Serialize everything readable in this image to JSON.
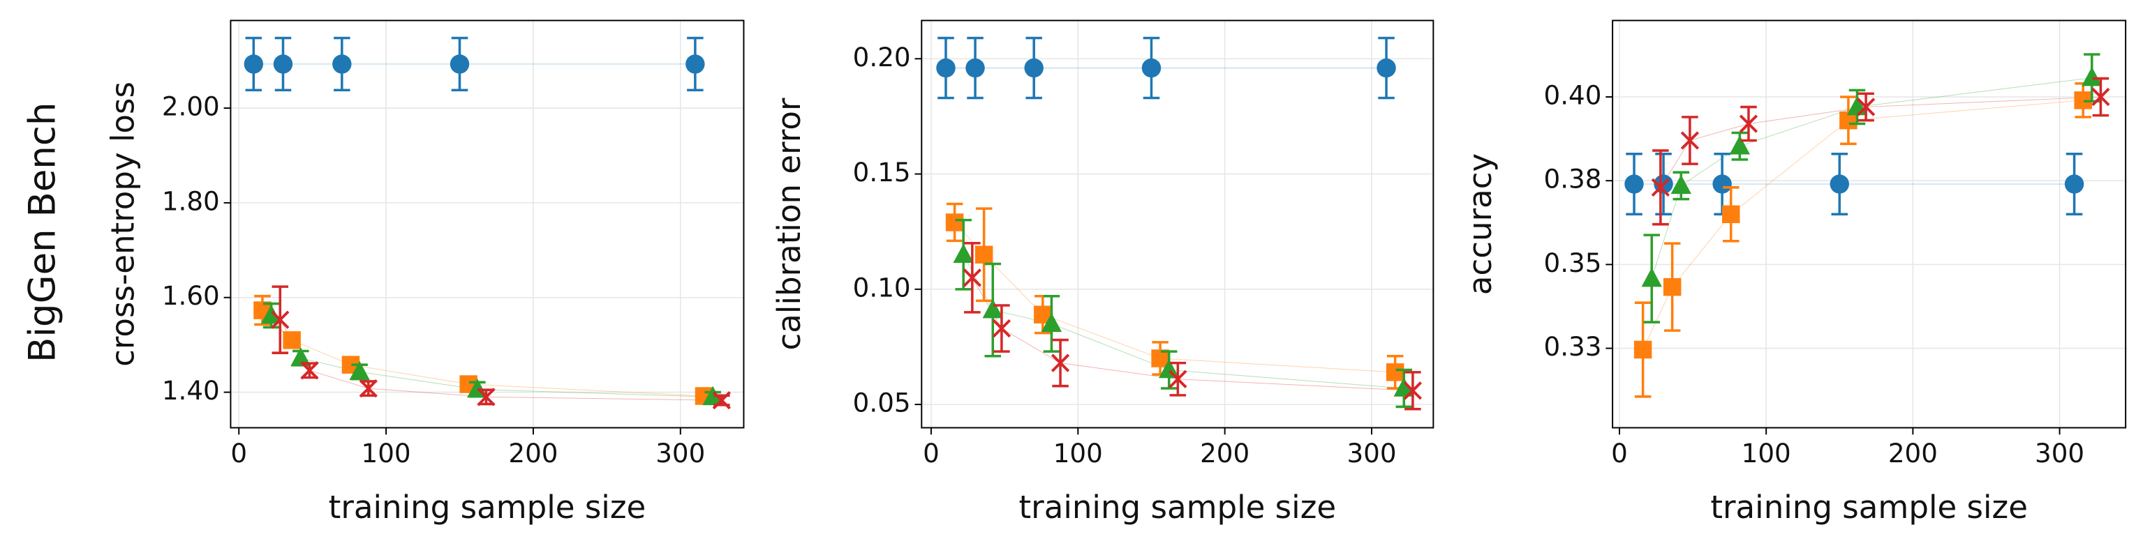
{
  "row_title": "BigGen Bench",
  "chart_data": [
    {
      "type": "scatter",
      "ylabel": "cross-entropy loss",
      "xlabel": "training sample size",
      "xlim": [
        -5.6,
        343
      ],
      "ylim": [
        1.325,
        2.185
      ],
      "xticks": [
        0,
        100,
        200,
        300
      ],
      "yticks": [
        {
          "value": 1.4,
          "label": "1.40"
        },
        {
          "value": 1.6,
          "label": "1.60"
        },
        {
          "value": 1.8,
          "label": "1.80"
        },
        {
          "value": 2.0,
          "label": "2.00"
        }
      ],
      "grid": true,
      "series": [
        {
          "color": "#1f77b4",
          "marker": "circle",
          "x": [
            10,
            30,
            70,
            150,
            310
          ],
          "values": [
            2.093,
            2.093,
            2.093,
            2.093,
            2.093
          ],
          "errors": [
            0.055,
            0.055,
            0.055,
            0.055,
            0.055
          ]
        },
        {
          "color": "#ff7f0e",
          "marker": "square",
          "x": [
            16,
            36,
            76,
            156,
            316
          ],
          "values": [
            1.573,
            1.51,
            1.458,
            1.417,
            1.392
          ],
          "errors": [
            0.03,
            0.015,
            0.01,
            0.01,
            0.008
          ]
        },
        {
          "color": "#2ca02c",
          "marker": "triangle",
          "x": [
            22,
            42,
            82,
            162,
            322
          ],
          "values": [
            1.562,
            1.472,
            1.443,
            1.406,
            1.39
          ],
          "errors": [
            0.025,
            0.015,
            0.015,
            0.015,
            0.01
          ]
        },
        {
          "color": "#d62728",
          "marker": "x",
          "x": [
            28,
            48,
            88,
            168,
            328
          ],
          "values": [
            1.553,
            1.446,
            1.408,
            1.39,
            1.383
          ],
          "errors": [
            0.07,
            0.015,
            0.015,
            0.015,
            0.01
          ]
        }
      ]
    },
    {
      "type": "scatter",
      "ylabel": "calibration error",
      "xlabel": "training sample size",
      "xlim": [
        -6.5,
        342
      ],
      "ylim": [
        0.0399,
        0.2166
      ],
      "xticks": [
        0,
        100,
        200,
        300
      ],
      "yticks": [
        0.05,
        {
          "value": 0.1,
          "label": "0.10"
        },
        0.15,
        {
          "value": 0.2,
          "label": "0.20"
        }
      ],
      "grid": true,
      "series": [
        {
          "color": "#1f77b4",
          "marker": "circle",
          "x": [
            10,
            30,
            70,
            150,
            310
          ],
          "values": [
            0.196,
            0.196,
            0.196,
            0.196,
            0.196
          ],
          "errors": [
            0.013,
            0.013,
            0.013,
            0.013,
            0.013
          ]
        },
        {
          "color": "#ff7f0e",
          "marker": "square",
          "x": [
            16,
            36,
            76,
            156,
            316
          ],
          "values": [
            0.129,
            0.115,
            0.089,
            0.07,
            0.064
          ],
          "errors": [
            0.008,
            0.02,
            0.008,
            0.007,
            0.007
          ]
        },
        {
          "color": "#2ca02c",
          "marker": "triangle",
          "x": [
            22,
            42,
            82,
            162,
            322
          ],
          "values": [
            0.115,
            0.091,
            0.085,
            0.065,
            0.057
          ],
          "errors": [
            0.015,
            0.02,
            0.012,
            0.008,
            0.008
          ]
        },
        {
          "color": "#d62728",
          "marker": "x",
          "x": [
            28,
            48,
            88,
            168,
            328
          ],
          "values": [
            0.105,
            0.083,
            0.068,
            0.061,
            0.056
          ],
          "errors": [
            0.015,
            0.01,
            0.01,
            0.007,
            0.008
          ]
        }
      ]
    },
    {
      "type": "scatter",
      "ylabel": "accuracy",
      "xlabel": "training sample size",
      "xlim": [
        -4.7,
        345
      ],
      "ylim": [
        0.3013,
        0.4228
      ],
      "xticks": [
        0,
        100,
        200,
        300
      ],
      "yticks": [
        {
          "value": 0.325,
          "label": "0.33"
        },
        0.35,
        {
          "value": 0.375,
          "label": "0.38"
        },
        {
          "value": 0.4,
          "label": "0.40"
        }
      ],
      "grid": true,
      "series": [
        {
          "color": "#1f77b4",
          "marker": "circle",
          "x": [
            10,
            30,
            70,
            150,
            310
          ],
          "values": [
            0.374,
            0.374,
            0.374,
            0.374,
            0.374
          ],
          "errors": [
            0.009,
            0.009,
            0.009,
            0.009,
            0.009
          ]
        },
        {
          "color": "#ff7f0e",
          "marker": "square",
          "x": [
            16,
            36,
            76,
            156,
            316
          ],
          "values": [
            0.3246,
            0.3433,
            0.365,
            0.393,
            0.399
          ],
          "errors": [
            0.014,
            0.013,
            0.008,
            0.007,
            0.005
          ]
        },
        {
          "color": "#2ca02c",
          "marker": "triangle",
          "x": [
            22,
            42,
            82,
            162,
            322
          ],
          "values": [
            0.3458,
            0.3735,
            0.3853,
            0.397,
            0.4057
          ],
          "errors": [
            0.013,
            0.004,
            0.004,
            0.005,
            0.007
          ]
        },
        {
          "color": "#d62728",
          "marker": "x",
          "x": [
            28,
            48,
            88,
            168,
            328
          ],
          "values": [
            0.373,
            0.387,
            0.392,
            0.397,
            0.4
          ],
          "errors": [
            0.011,
            0.007,
            0.005,
            0.004,
            0.0055
          ]
        }
      ]
    }
  ]
}
